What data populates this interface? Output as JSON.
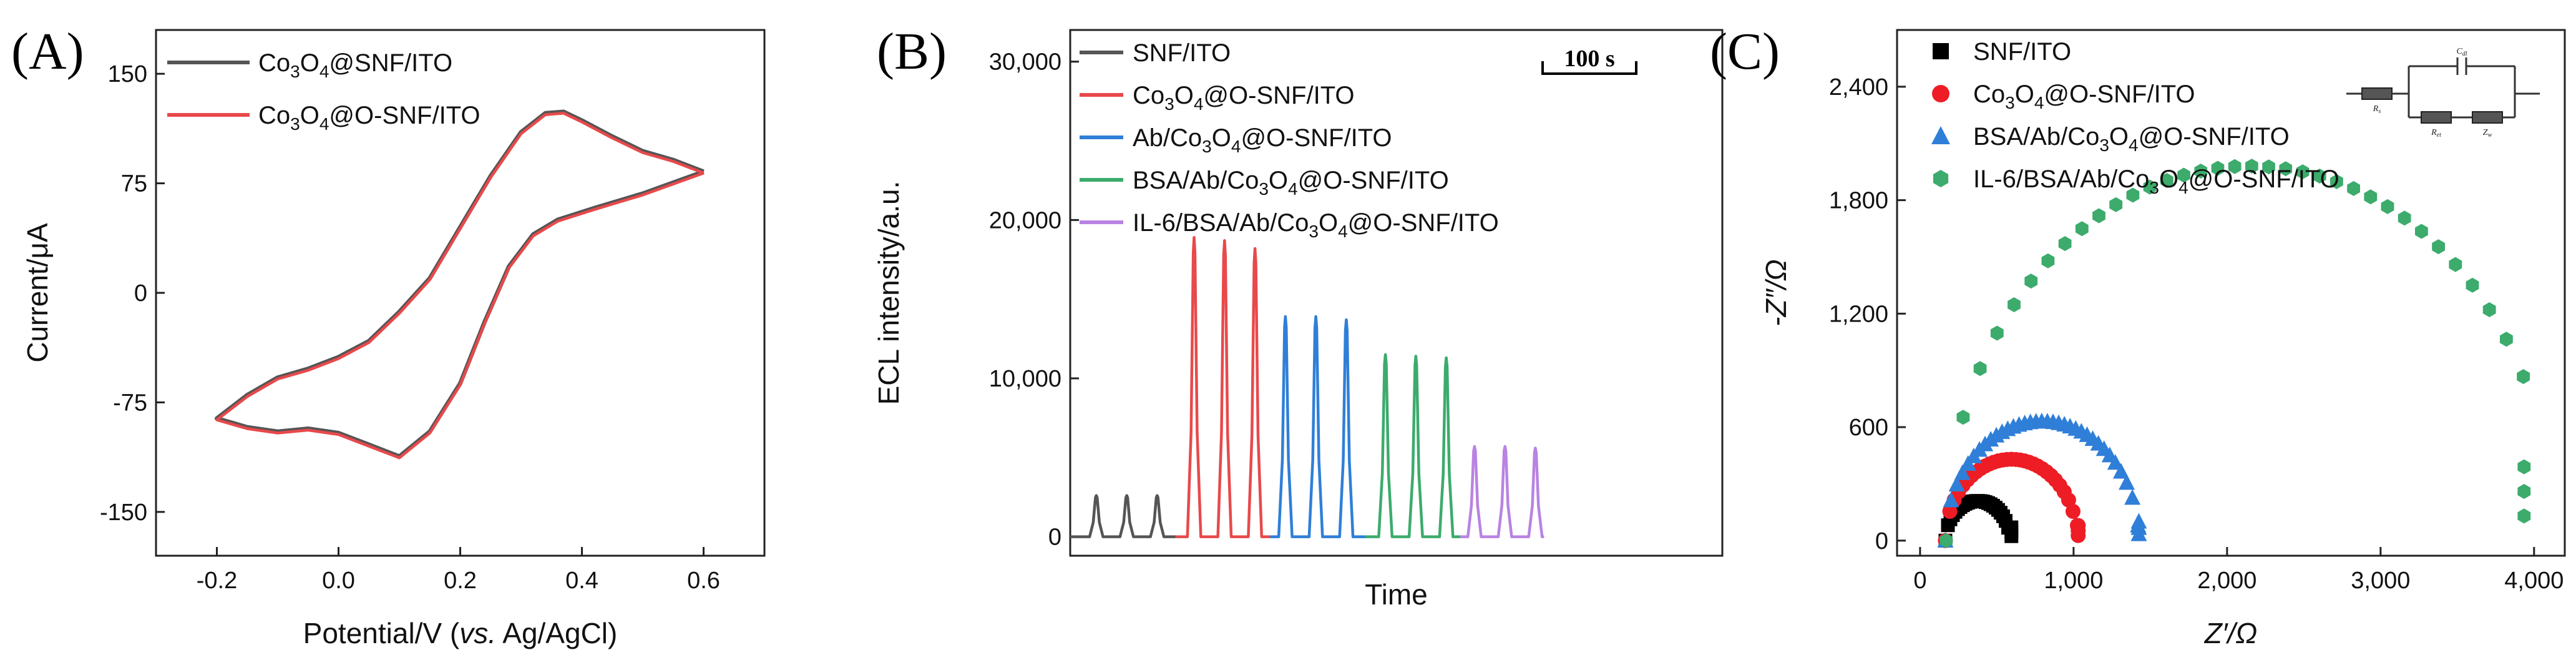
{
  "chart_data": [
    {
      "type": "line",
      "panel_label": "(A)",
      "xlabel_parts": [
        "Potential/V (",
        "vs.",
        " Ag/AgCl)"
      ],
      "ylabel": "Current/μA",
      "xlim": [
        -0.3,
        0.7
      ],
      "ylim": [
        -180,
        180
      ],
      "x_ticks": [
        -0.2,
        0.0,
        0.2,
        0.4,
        0.6
      ],
      "x_tick_labels": [
        "-0.2",
        "0.0",
        "0.2",
        "0.4",
        "0.6"
      ],
      "y_ticks": [
        -150,
        -75,
        0,
        75,
        150
      ],
      "y_tick_labels": [
        "-150",
        "-75",
        "0",
        "75",
        "150"
      ],
      "series": [
        {
          "name": "Co3O4@SNF/ITO",
          "label_parts": [
            "Co",
            "3",
            "O",
            "4",
            "@SNF/ITO"
          ],
          "color": "#555555",
          "x": [
            0.6,
            0.5,
            0.42,
            0.36,
            0.32,
            0.28,
            0.24,
            0.2,
            0.15,
            0.1,
            0.05,
            0.0,
            -0.05,
            -0.1,
            -0.15,
            -0.2,
            -0.15,
            -0.1,
            -0.05,
            0.0,
            0.05,
            0.1,
            0.15,
            0.2,
            0.25,
            0.3,
            0.34,
            0.37,
            0.4,
            0.45,
            0.5,
            0.55,
            0.6
          ],
          "y": [
            83,
            68,
            58,
            50,
            40,
            18,
            -20,
            -62,
            -95,
            -112,
            -104,
            -96,
            -93,
            -95,
            -92,
            -86,
            -70,
            -58,
            -52,
            -44,
            -33,
            -13,
            10,
            45,
            80,
            110,
            123,
            124,
            118,
            107,
            97,
            91,
            83
          ]
        },
        {
          "name": "Co3O4@O-SNF/ITO",
          "label_parts": [
            "Co",
            "3",
            "O",
            "4",
            "@O-SNF/ITO"
          ],
          "color": "#e8494b",
          "x": [
            0.6,
            0.5,
            0.42,
            0.36,
            0.32,
            0.28,
            0.24,
            0.2,
            0.15,
            0.1,
            0.05,
            0.0,
            -0.05,
            -0.1,
            -0.15,
            -0.2,
            -0.15,
            -0.1,
            -0.05,
            0.0,
            0.05,
            0.1,
            0.15,
            0.2,
            0.25,
            0.3,
            0.34,
            0.37,
            0.4,
            0.45,
            0.5,
            0.55,
            0.6
          ],
          "y": [
            82,
            67,
            57,
            49,
            39,
            17,
            -21,
            -63,
            -96,
            -113,
            -105,
            -97,
            -94,
            -96,
            -93,
            -87,
            -71,
            -59,
            -53,
            -45,
            -34,
            -14,
            9,
            44,
            79,
            109,
            122,
            123,
            117,
            106,
            96,
            90,
            82
          ]
        }
      ]
    },
    {
      "type": "line",
      "panel_label": "(B)",
      "xlabel": "Time",
      "ylabel": "ECL intensity/a.u.",
      "xlim": [
        0,
        1500
      ],
      "ylim": [
        -1200,
        32000
      ],
      "y_ticks": [
        0,
        10000,
        20000,
        30000
      ],
      "y_tick_labels": [
        "0",
        "10,000",
        "20,000",
        "30,000"
      ],
      "scale_bar": "100 s",
      "series": [
        {
          "name": "SNF/ITO",
          "label_parts": [
            "SNF/ITO"
          ],
          "color": "#555555",
          "peak_times": [
            60,
            130,
            200
          ],
          "peak_height": 2600
        },
        {
          "name": "Co3O4@O-SNF/ITO",
          "label_parts": [
            "Co",
            "3",
            "O",
            "4",
            "@O-SNF/ITO"
          ],
          "color": "#e8494b",
          "peak_times": [
            285,
            355,
            425
          ],
          "peak_heights": [
            18900,
            18700,
            18200
          ]
        },
        {
          "name": "Ab/Co3O4@O-SNF/ITO",
          "label_parts": [
            "Ab/Co",
            "3",
            "O",
            "4",
            "@O-SNF/ITO"
          ],
          "color": "#2f7fd8",
          "peak_times": [
            495,
            565,
            635
          ],
          "peak_heights": [
            13900,
            13900,
            13700
          ]
        },
        {
          "name": "BSA/Ab/Co3O4@O-SNF/ITO",
          "label_parts": [
            "BSA/Ab/Co",
            "3",
            "O",
            "4",
            "@O-SNF/ITO"
          ],
          "color": "#3cab6c",
          "peak_times": [
            725,
            795,
            865
          ],
          "peak_heights": [
            11500,
            11400,
            11300
          ]
        },
        {
          "name": "IL-6/BSA/Ab/Co3O4@O-SNF/ITO",
          "label_parts": [
            "IL-6/BSA/Ab/Co",
            "3",
            "O",
            "4",
            "@O-SNF/ITO"
          ],
          "color": "#b983e2",
          "peak_times": [
            930,
            1000,
            1070
          ],
          "peak_heights": [
            5700,
            5700,
            5600
          ]
        }
      ]
    },
    {
      "type": "scatter",
      "panel_label": "(C)",
      "xlabel": "Z′/Ω",
      "ylabel": "-Z″/Ω",
      "xlim": [
        -150,
        4200
      ],
      "ylim": [
        -80,
        2700
      ],
      "x_ticks": [
        0,
        1000,
        2000,
        3000,
        4000
      ],
      "x_tick_labels": [
        "0",
        "1,000",
        "2,000",
        "3,000",
        "4,000"
      ],
      "y_ticks": [
        0,
        600,
        1200,
        1800,
        2400
      ],
      "y_tick_labels": [
        "0",
        "600",
        "1,200",
        "1,800",
        "2,400"
      ],
      "circuit_labels": {
        "cdl": "C",
        "cdl_sub": "dl",
        "rs": "R",
        "rs_sub": "s",
        "ret": "R",
        "ret_sub": "et",
        "zw": "Z",
        "zw_sub": "w"
      },
      "series": [
        {
          "name": "SNF/ITO",
          "label_parts": [
            "SNF/ITO"
          ],
          "marker": "square",
          "color": "#000000",
          "center": 375,
          "radius": 210,
          "x_start": 165,
          "x_end": 590,
          "tail_y": 70
        },
        {
          "name": "Co3O4@O-SNF/ITO",
          "label_parts": [
            "Co",
            "3",
            "O",
            "4",
            "@O-SNF/ITO"
          ],
          "marker": "circle",
          "color": "#ee1c25",
          "center": 595,
          "radius": 430,
          "x_start": 165,
          "x_end": 1025,
          "tail_y": 80
        },
        {
          "name": "BSA/Ab/Co3O4@O-SNF/ITO",
          "label_parts": [
            "BSA/Ab/Co",
            "3",
            "O",
            "4",
            "@O-SNF/ITO"
          ],
          "marker": "triangle",
          "color": "#2f7fd8",
          "center": 795,
          "radius": 630,
          "x_start": 165,
          "x_end": 1420,
          "tail_y": 100
        },
        {
          "name": "IL-6/BSA/Ab/Co3O4@O-SNF/ITO",
          "label_parts": [
            "IL-6/BSA/Ab/Co",
            "3",
            "O",
            "4",
            "@O-SNF/ITO"
          ],
          "marker": "hexagon",
          "color": "#3cab6c",
          "center": 2150,
          "radius": 1980,
          "x_start": 170,
          "x_end": 3930,
          "tail_y": 390
        }
      ]
    }
  ]
}
